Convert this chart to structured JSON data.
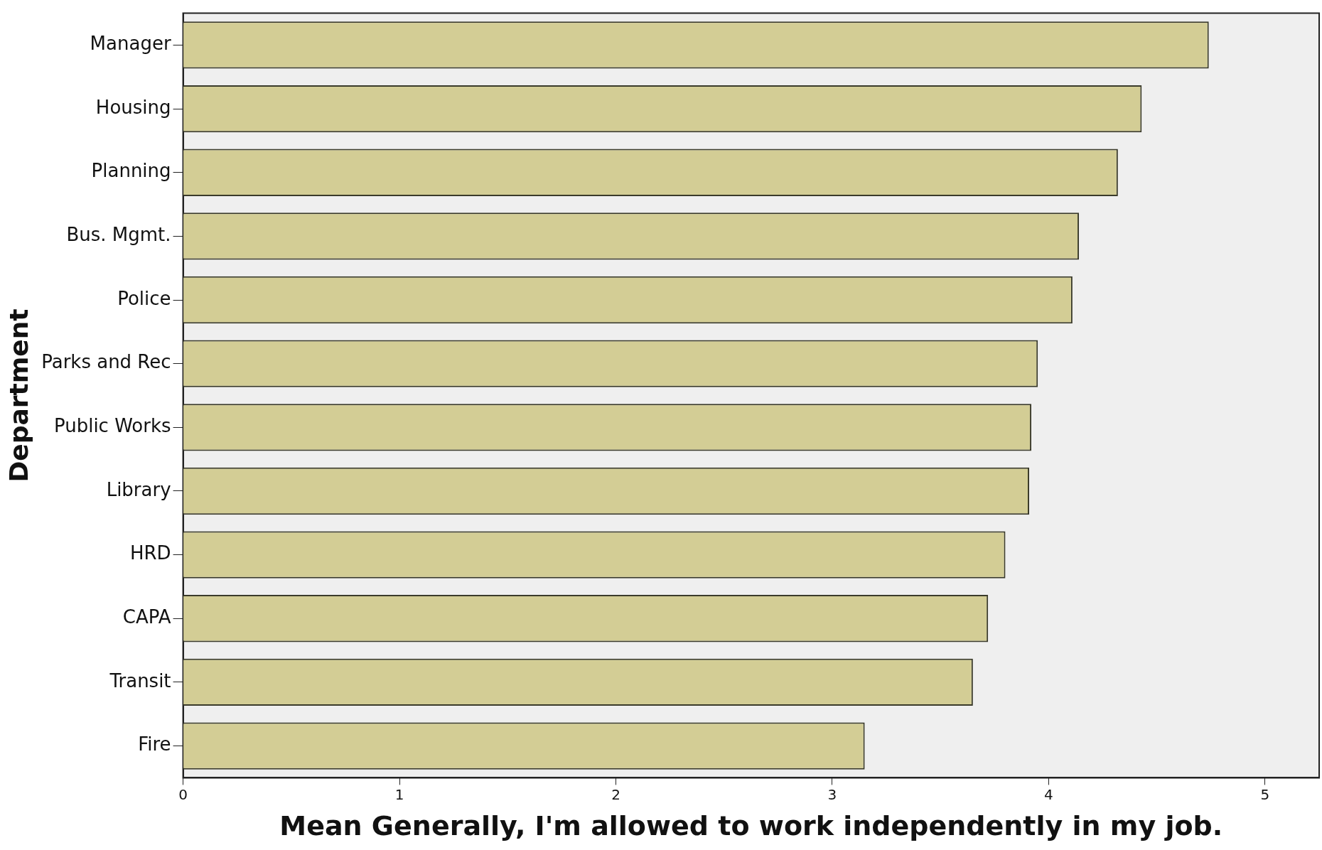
{
  "chart_data": {
    "type": "bar",
    "orientation": "horizontal",
    "xlabel": "Mean Generally, I'm allowed to work independently in my job.",
    "ylabel": "Department",
    "categories": [
      "Manager",
      "Housing",
      "Planning",
      "Bus. Mgmt.",
      "Police",
      "Parks and Rec",
      "Public Works",
      "Library",
      "HRD",
      "CAPA",
      "Transit",
      "Fire"
    ],
    "values": [
      4.74,
      4.43,
      4.32,
      4.14,
      4.11,
      3.95,
      3.92,
      3.91,
      3.8,
      3.72,
      3.65,
      3.15
    ],
    "color": "#d3cd95",
    "xlim": [
      0,
      5.25
    ],
    "xticks": [
      0,
      1,
      2,
      3,
      4,
      5
    ],
    "grid": false,
    "legend": false
  }
}
